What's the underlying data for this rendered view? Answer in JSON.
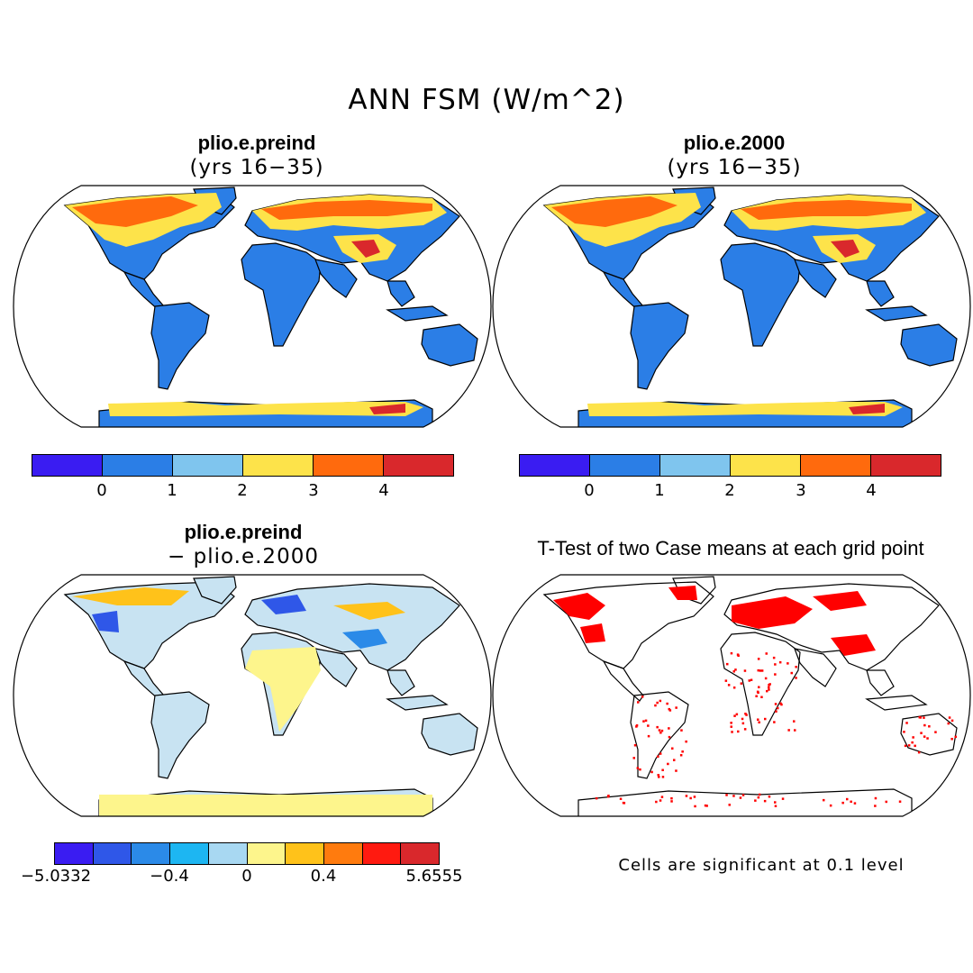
{
  "figure": {
    "title": "ANN FSM (W/m^2)"
  },
  "panels": {
    "p1": {
      "title": "plio.e.preind",
      "subtitle": "(yrs 16−35)"
    },
    "p2": {
      "title": "plio.e.2000",
      "subtitle": "(yrs 16−35)"
    },
    "p3": {
      "title": "plio.e.preind",
      "subtitle": "− plio.e.2000"
    },
    "p4": {
      "title": "T-Test of two Case means at each grid point",
      "note": "Cells are significant at 0.1 level"
    }
  },
  "colorbars": {
    "case": {
      "colors": [
        "#3a1cf2",
        "#2b7ee6",
        "#7fc5ee",
        "#fde34a",
        "#ff6a0d",
        "#d9282c"
      ],
      "labels": [
        "0",
        "1",
        "2",
        "3",
        "4"
      ]
    },
    "diff": {
      "colors": [
        "#3a1cf2",
        "#2f57e8",
        "#2b8ae8",
        "#1db6f2",
        "#a8d8f2",
        "#fdf58c",
        "#ffc21a",
        "#ff7b0e",
        "#ff1a10",
        "#d9282c"
      ],
      "labels": [
        "−5.0332",
        "−0.4",
        "0",
        "0.4",
        "5.6555"
      ]
    }
  },
  "map_colors": {
    "land_base": "#2b7ee6",
    "diff_base": "#c8e3f2",
    "significant": "#ff0000",
    "coast": "#000000"
  }
}
